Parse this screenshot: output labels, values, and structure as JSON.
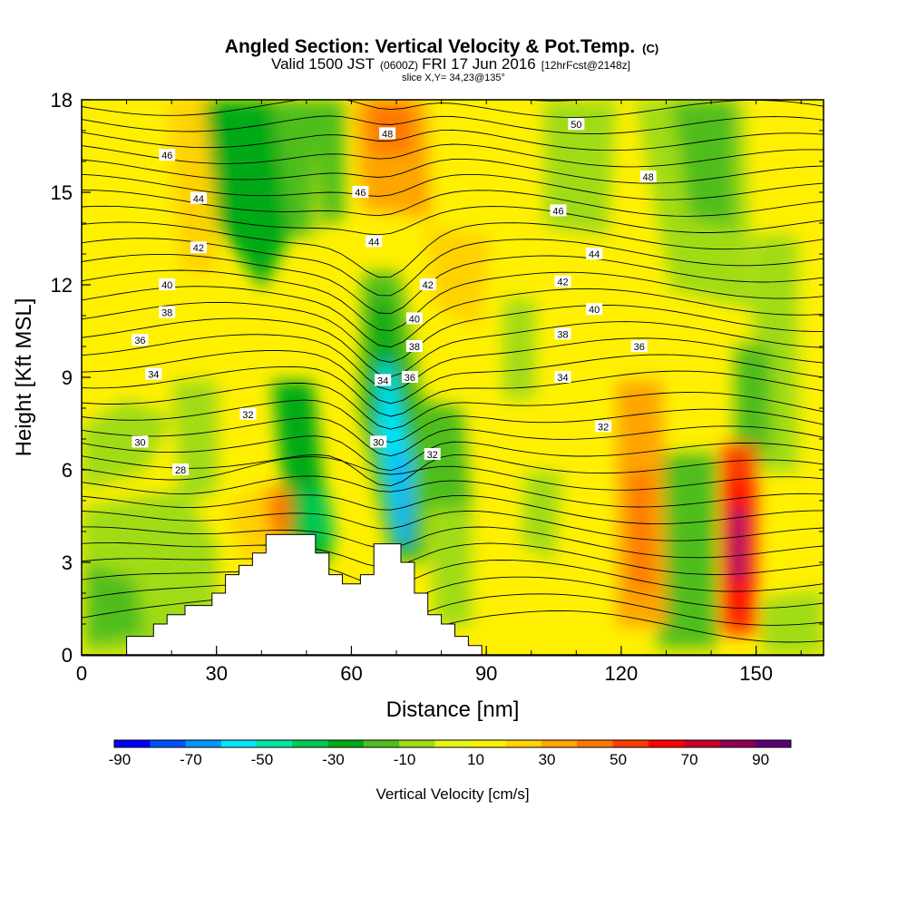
{
  "chart_data": {
    "type": "heatmap",
    "title_main": "Angled Section: Vertical Velocity & Pot.Temp.",
    "title_units": "(C)",
    "subtitle_a": "Valid 1500 JST",
    "subtitle_b": "(0600Z)",
    "subtitle_c": "FRI 17 Jun 2016",
    "subtitle_d": "[12hrFcst@2148z]",
    "slice_text": "slice X,Y= 34,23@135°",
    "xlabel": "Distance [nm]",
    "ylabel": "Height [Kft MSL]",
    "xlim": [
      0,
      165
    ],
    "ylim": [
      0,
      18
    ],
    "x_ticks": [
      "0",
      "30",
      "60",
      "90",
      "120",
      "150"
    ],
    "y_ticks": [
      "0",
      "3",
      "6",
      "9",
      "12",
      "15",
      "18"
    ],
    "colorbar": {
      "label": "Vertical Velocity [cm/s]",
      "tick_labels": [
        "-90",
        "-70",
        "-50",
        "-30",
        "-10",
        "10",
        "30",
        "50",
        "70",
        "90"
      ],
      "colors": [
        "#0000ff",
        "#0050ff",
        "#0096ff",
        "#00e6ff",
        "#00e6a0",
        "#00c850",
        "#00aa14",
        "#50be1e",
        "#a0dc14",
        "#e6f514",
        "#fff000",
        "#ffd200",
        "#ffa500",
        "#ff7800",
        "#ff3c00",
        "#ff0000",
        "#c80028",
        "#8c0050",
        "#5a0078"
      ]
    },
    "theta_contour_labels": [
      {
        "v": "50",
        "x": 110,
        "y": 17.2
      },
      {
        "v": "48",
        "x": 68,
        "y": 16.9
      },
      {
        "v": "48",
        "x": 126,
        "y": 15.5
      },
      {
        "v": "46",
        "x": 19,
        "y": 16.2
      },
      {
        "v": "46",
        "x": 62,
        "y": 15.0
      },
      {
        "v": "46",
        "x": 106,
        "y": 14.4
      },
      {
        "v": "44",
        "x": 26,
        "y": 14.8
      },
      {
        "v": "44",
        "x": 65,
        "y": 13.4
      },
      {
        "v": "44",
        "x": 114,
        "y": 13.0
      },
      {
        "v": "42",
        "x": 26,
        "y": 13.2
      },
      {
        "v": "42",
        "x": 77,
        "y": 12.0
      },
      {
        "v": "42",
        "x": 107,
        "y": 12.1
      },
      {
        "v": "40",
        "x": 19,
        "y": 12.0
      },
      {
        "v": "40",
        "x": 74,
        "y": 10.9
      },
      {
        "v": "40",
        "x": 114,
        "y": 11.2
      },
      {
        "v": "38",
        "x": 19,
        "y": 11.1
      },
      {
        "v": "38",
        "x": 74,
        "y": 10.0
      },
      {
        "v": "38",
        "x": 107,
        "y": 10.4
      },
      {
        "v": "36",
        "x": 13,
        "y": 10.2
      },
      {
        "v": "36",
        "x": 73,
        "y": 9.0
      },
      {
        "v": "36",
        "x": 124,
        "y": 10.0
      },
      {
        "v": "34",
        "x": 16,
        "y": 9.1
      },
      {
        "v": "34",
        "x": 67,
        "y": 8.9
      },
      {
        "v": "34",
        "x": 107,
        "y": 9.0
      },
      {
        "v": "32",
        "x": 37,
        "y": 7.8
      },
      {
        "v": "32",
        "x": 78,
        "y": 6.5
      },
      {
        "v": "32",
        "x": 116,
        "y": 7.4
      },
      {
        "v": "30",
        "x": 13,
        "y": 6.9
      },
      {
        "v": "30",
        "x": 66,
        "y": 6.9
      },
      {
        "v": "28",
        "x": 22,
        "y": 6.0
      }
    ],
    "terrain_profile": [
      {
        "x": 0,
        "h": 0.0
      },
      {
        "x": 10,
        "h": 0.0
      },
      {
        "x": 10,
        "h": 0.6
      },
      {
        "x": 16,
        "h": 0.6
      },
      {
        "x": 16,
        "h": 1.0
      },
      {
        "x": 19,
        "h": 1.0
      },
      {
        "x": 19,
        "h": 1.3
      },
      {
        "x": 23,
        "h": 1.3
      },
      {
        "x": 23,
        "h": 1.6
      },
      {
        "x": 29,
        "h": 1.6
      },
      {
        "x": 29,
        "h": 2.0
      },
      {
        "x": 32,
        "h": 2.0
      },
      {
        "x": 32,
        "h": 2.6
      },
      {
        "x": 35,
        "h": 2.6
      },
      {
        "x": 35,
        "h": 2.9
      },
      {
        "x": 38,
        "h": 2.9
      },
      {
        "x": 38,
        "h": 3.3
      },
      {
        "x": 41,
        "h": 3.3
      },
      {
        "x": 41,
        "h": 3.9
      },
      {
        "x": 52,
        "h": 3.9
      },
      {
        "x": 52,
        "h": 3.3
      },
      {
        "x": 55,
        "h": 3.3
      },
      {
        "x": 55,
        "h": 2.6
      },
      {
        "x": 58,
        "h": 2.6
      },
      {
        "x": 58,
        "h": 2.3
      },
      {
        "x": 62,
        "h": 2.3
      },
      {
        "x": 62,
        "h": 2.6
      },
      {
        "x": 65,
        "h": 2.6
      },
      {
        "x": 65,
        "h": 3.6
      },
      {
        "x": 71,
        "h": 3.6
      },
      {
        "x": 71,
        "h": 3.0
      },
      {
        "x": 74,
        "h": 3.0
      },
      {
        "x": 74,
        "h": 2.0
      },
      {
        "x": 77,
        "h": 2.0
      },
      {
        "x": 77,
        "h": 1.3
      },
      {
        "x": 80,
        "h": 1.3
      },
      {
        "x": 80,
        "h": 1.0
      },
      {
        "x": 83,
        "h": 1.0
      },
      {
        "x": 83,
        "h": 0.6
      },
      {
        "x": 86,
        "h": 0.6
      },
      {
        "x": 86,
        "h": 0.3
      },
      {
        "x": 89,
        "h": 0.3
      },
      {
        "x": 89,
        "h": 0.0
      },
      {
        "x": 165,
        "h": 0.0
      }
    ]
  }
}
